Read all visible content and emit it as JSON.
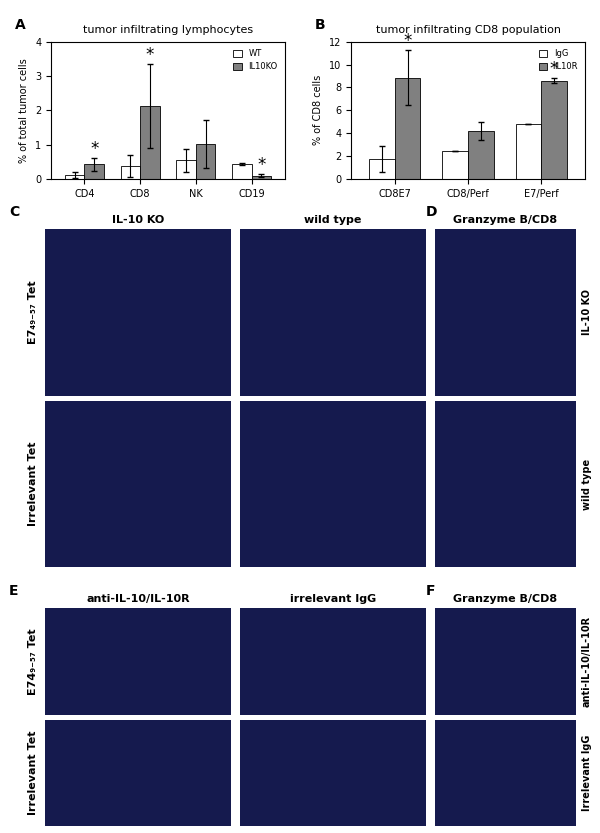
{
  "chart_data": [
    {
      "type": "bar",
      "panel": "A",
      "title": "tumor infiltrating lymphocytes",
      "y_label": "% of total tumor cells",
      "categories": [
        "CD4",
        "CD8",
        "NK",
        "CD19"
      ],
      "series": [
        {
          "name": "WT",
          "color": "#ffffff",
          "values": [
            0.12,
            0.38,
            0.55,
            0.45
          ],
          "errors": [
            0.1,
            0.33,
            0.33,
            0.03
          ]
        },
        {
          "name": "IL10KO",
          "color": "#808080",
          "values": [
            0.43,
            2.12,
            1.02,
            0.1
          ],
          "errors": [
            0.18,
            1.22,
            0.7,
            0.05
          ]
        }
      ],
      "annotations": [
        {
          "text": "*",
          "category": "CD4",
          "series": "IL10KO"
        },
        {
          "text": "*",
          "category": "CD8",
          "series": "IL10KO"
        },
        {
          "text": "*",
          "category": "CD19",
          "series": "IL10KO"
        }
      ],
      "ylim": [
        0,
        4
      ],
      "yticks": [
        0,
        1,
        2,
        3,
        4
      ],
      "legend": "upper right",
      "grid": false
    },
    {
      "type": "bar",
      "panel": "B",
      "title": "tumor infiltrating CD8 population",
      "y_label": "% of CD8 cells",
      "categories": [
        "CD8E7",
        "CD8/Perf",
        "E7/Perf"
      ],
      "series": [
        {
          "name": "IgG",
          "color": "#ffffff",
          "values": [
            1.75,
            2.45,
            4.8
          ],
          "errors": [
            1.15,
            0,
            0
          ]
        },
        {
          "name": "IL10R",
          "color": "#808080",
          "values": [
            8.85,
            4.2,
            8.6
          ],
          "errors": [
            2.4,
            0.8,
            0.2
          ]
        }
      ],
      "annotations": [
        {
          "text": "*",
          "category": "CD8E7",
          "series": "IL10R"
        },
        {
          "text": "*",
          "category": "E7/Perf",
          "series": "IL10R"
        }
      ],
      "ylim": [
        0,
        12
      ],
      "yticks": [
        0,
        2,
        4,
        6,
        8,
        10,
        12
      ],
      "legend": "upper right",
      "grid": false
    }
  ],
  "image_panels": [
    {
      "label": "C",
      "columns": [
        "IL-10 KO",
        "wild type"
      ],
      "rows": [
        "E7₄₉₋₅₇ Tet",
        "Irrelevant Tet"
      ]
    },
    {
      "label": "D",
      "title": "Granzyme B/CD8",
      "rows": [
        "IL-10 KO",
        "wild type"
      ]
    },
    {
      "label": "E",
      "columns": [
        "anti-IL-10/IL-10R",
        "irrelevant IgG"
      ],
      "rows": [
        "E74₉₋₅₇ Tet",
        "Irrelevant Tet"
      ]
    },
    {
      "label": "F",
      "title": "Granzyme B/CD8",
      "rows": [
        "anti-IL-10/IL-10R",
        "Irrelevant IgG"
      ]
    }
  ]
}
